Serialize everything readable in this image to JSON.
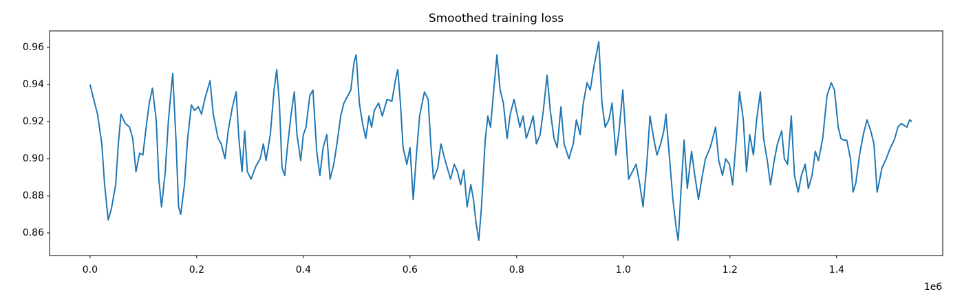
{
  "chart_data": {
    "type": "line",
    "title": "Smoothed training loss",
    "color": "#1f77b4",
    "x": [
      0,
      5000,
      14000,
      22000,
      27000,
      34000,
      40000,
      48000,
      53000,
      58000,
      66000,
      74000,
      80000,
      86000,
      93000,
      99000,
      106000,
      111000,
      117000,
      124000,
      129000,
      134000,
      141000,
      147000,
      155000,
      161000,
      166000,
      170000,
      177000,
      183000,
      190000,
      196000,
      203000,
      209000,
      215000,
      225000,
      231000,
      240000,
      246000,
      253000,
      259000,
      267000,
      274000,
      279000,
      285000,
      290000,
      295000,
      302000,
      311000,
      319000,
      325000,
      330000,
      338000,
      345000,
      350000,
      355000,
      360000,
      365000,
      370000,
      377000,
      383000,
      388000,
      395000,
      400000,
      405000,
      412000,
      418000,
      425000,
      431000,
      437000,
      444000,
      450000,
      457000,
      463000,
      470000,
      476000,
      489000,
      495000,
      499000,
      505000,
      511000,
      517000,
      523000,
      528000,
      533000,
      541000,
      548000,
      557000,
      566000,
      573000,
      577000,
      582000,
      587000,
      594000,
      600000,
      606000,
      612000,
      618000,
      627000,
      634000,
      639000,
      644000,
      652000,
      658000,
      665000,
      670000,
      676000,
      683000,
      689000,
      695000,
      701000,
      707000,
      714000,
      719000,
      724000,
      729000,
      734000,
      741000,
      746000,
      751000,
      757000,
      763000,
      769000,
      775000,
      782000,
      788000,
      795000,
      801000,
      806000,
      812000,
      818000,
      825000,
      831000,
      837000,
      844000,
      850000,
      857000,
      863000,
      870000,
      876000,
      883000,
      889000,
      898000,
      906000,
      912000,
      919000,
      925000,
      932000,
      938000,
      945000,
      954000,
      960000,
      966000,
      973000,
      979000,
      986000,
      992000,
      999000,
      1005000,
      1010000,
      1017000,
      1024000,
      1031000,
      1037000,
      1044000,
      1050000,
      1057000,
      1063000,
      1070000,
      1076000,
      1080000,
      1085000,
      1093000,
      1099000,
      1103000,
      1108000,
      1114000,
      1120000,
      1128000,
      1134000,
      1141000,
      1147000,
      1154000,
      1163000,
      1173000,
      1179000,
      1186000,
      1192000,
      1199000,
      1205000,
      1212000,
      1218000,
      1225000,
      1231000,
      1237000,
      1244000,
      1250000,
      1257000,
      1263000,
      1270000,
      1276000,
      1283000,
      1289000,
      1297000,
      1302000,
      1308000,
      1315000,
      1321000,
      1328000,
      1334000,
      1341000,
      1347000,
      1354000,
      1360000,
      1366000,
      1374000,
      1382000,
      1390000,
      1396000,
      1403000,
      1408000,
      1413000,
      1419000,
      1426000,
      1431000,
      1436000,
      1443000,
      1450000,
      1457000,
      1464000,
      1470000,
      1476000,
      1485000,
      1493000,
      1501000,
      1508000,
      1515000,
      1521000,
      1532000,
      1537000,
      1541000
    ],
    "values": [
      0.94,
      0.934,
      0.924,
      0.908,
      0.887,
      0.867,
      0.873,
      0.886,
      0.908,
      0.924,
      0.919,
      0.917,
      0.911,
      0.893,
      0.903,
      0.902,
      0.919,
      0.93,
      0.938,
      0.921,
      0.889,
      0.874,
      0.893,
      0.921,
      0.946,
      0.911,
      0.874,
      0.87,
      0.886,
      0.911,
      0.929,
      0.926,
      0.928,
      0.924,
      0.932,
      0.942,
      0.924,
      0.911,
      0.908,
      0.9,
      0.915,
      0.928,
      0.936,
      0.911,
      0.893,
      0.915,
      0.893,
      0.889,
      0.896,
      0.9,
      0.908,
      0.899,
      0.913,
      0.937,
      0.948,
      0.93,
      0.895,
      0.891,
      0.906,
      0.924,
      0.936,
      0.913,
      0.899,
      0.913,
      0.917,
      0.934,
      0.937,
      0.904,
      0.891,
      0.906,
      0.913,
      0.889,
      0.897,
      0.908,
      0.923,
      0.93,
      0.937,
      0.952,
      0.956,
      0.93,
      0.919,
      0.911,
      0.923,
      0.917,
      0.926,
      0.93,
      0.923,
      0.932,
      0.931,
      0.943,
      0.948,
      0.93,
      0.906,
      0.897,
      0.906,
      0.878,
      0.902,
      0.923,
      0.936,
      0.932,
      0.908,
      0.889,
      0.895,
      0.908,
      0.9,
      0.895,
      0.889,
      0.897,
      0.893,
      0.886,
      0.894,
      0.874,
      0.886,
      0.878,
      0.865,
      0.856,
      0.874,
      0.91,
      0.923,
      0.917,
      0.937,
      0.956,
      0.937,
      0.93,
      0.911,
      0.924,
      0.932,
      0.924,
      0.917,
      0.923,
      0.911,
      0.917,
      0.923,
      0.908,
      0.913,
      0.926,
      0.945,
      0.926,
      0.911,
      0.906,
      0.928,
      0.908,
      0.9,
      0.908,
      0.921,
      0.913,
      0.93,
      0.941,
      0.937,
      0.95,
      0.963,
      0.93,
      0.917,
      0.921,
      0.93,
      0.902,
      0.915,
      0.937,
      0.911,
      0.889,
      0.893,
      0.897,
      0.886,
      0.874,
      0.897,
      0.923,
      0.911,
      0.902,
      0.908,
      0.915,
      0.924,
      0.906,
      0.878,
      0.863,
      0.856,
      0.882,
      0.91,
      0.884,
      0.904,
      0.891,
      0.878,
      0.889,
      0.9,
      0.906,
      0.917,
      0.899,
      0.891,
      0.9,
      0.897,
      0.886,
      0.911,
      0.936,
      0.921,
      0.893,
      0.913,
      0.902,
      0.921,
      0.936,
      0.911,
      0.899,
      0.886,
      0.899,
      0.908,
      0.915,
      0.9,
      0.897,
      0.923,
      0.891,
      0.882,
      0.891,
      0.897,
      0.884,
      0.891,
      0.904,
      0.899,
      0.911,
      0.934,
      0.941,
      0.937,
      0.917,
      0.911,
      0.91,
      0.91,
      0.9,
      0.882,
      0.887,
      0.902,
      0.913,
      0.921,
      0.915,
      0.908,
      0.882,
      0.895,
      0.9,
      0.906,
      0.91,
      0.917,
      0.919,
      0.917,
      0.921,
      0.92
    ],
    "xlim": [
      -76000,
      1599000
    ],
    "ylim": [
      0.8478,
      0.9689
    ],
    "xticks": [
      {
        "value": 0,
        "label": "0.0"
      },
      {
        "value": 200000,
        "label": "0.2"
      },
      {
        "value": 400000,
        "label": "0.4"
      },
      {
        "value": 600000,
        "label": "0.6"
      },
      {
        "value": 800000,
        "label": "0.8"
      },
      {
        "value": 1000000,
        "label": "1.0"
      },
      {
        "value": 1200000,
        "label": "1.2"
      },
      {
        "value": 1400000,
        "label": "1.4"
      }
    ],
    "x_offset_label": "1e6",
    "yticks": [
      0.86,
      0.88,
      {
        "value": 0.9,
        "label": "0.90"
      },
      0.92,
      0.94,
      0.96
    ]
  }
}
